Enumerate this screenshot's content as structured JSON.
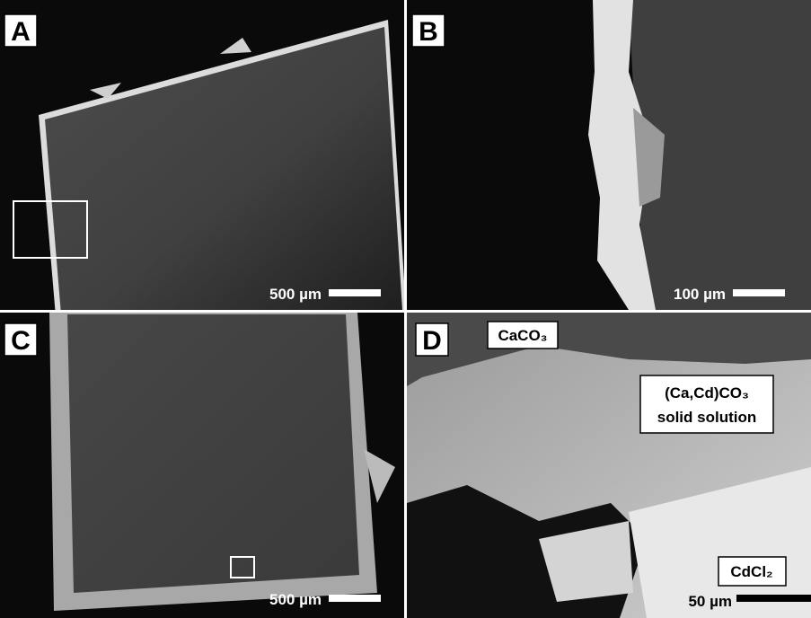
{
  "panels": [
    {
      "letter": "A",
      "scale": "500 µm"
    },
    {
      "letter": "B",
      "scale": "100 µm"
    },
    {
      "letter": "C",
      "scale": "500 µm"
    },
    {
      "letter": "D",
      "scale": "50 µm"
    }
  ],
  "labels": {
    "calcite": "CaCO₃",
    "solid_solution_1": "(Ca,Cd)CO₃",
    "solid_solution_2": "solid solution",
    "cdcl2": "CdCl₂"
  }
}
